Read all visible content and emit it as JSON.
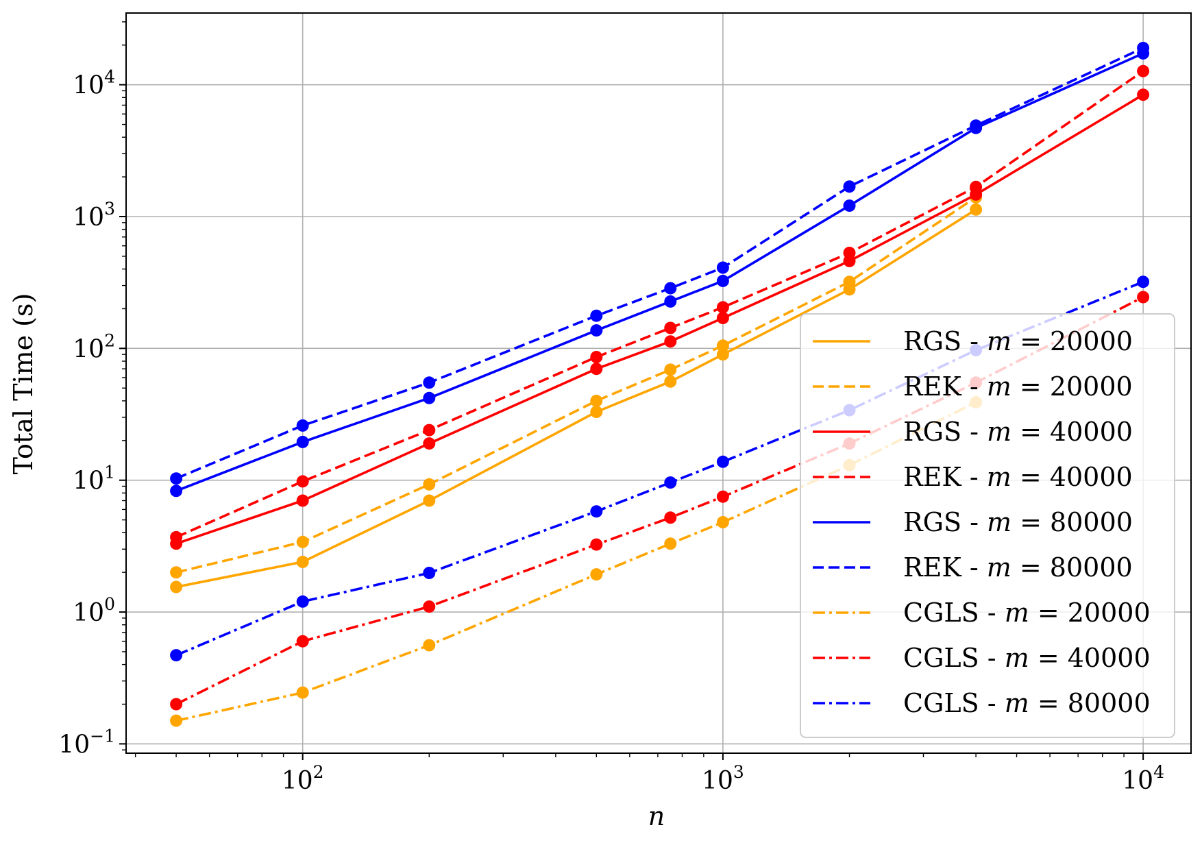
{
  "chart_data": {
    "type": "line",
    "xlabel": "n",
    "ylabel": "Total Time (s)",
    "xscale": "log",
    "yscale": "log",
    "xlim": [
      38,
      13000
    ],
    "ylim": [
      0.085,
      35000
    ],
    "grid": true,
    "legend_position": "lower-right",
    "x_major_ticks": [
      {
        "value": 100,
        "base": "10",
        "exp": "2"
      },
      {
        "value": 1000,
        "base": "10",
        "exp": "3"
      },
      {
        "value": 10000,
        "base": "10",
        "exp": "4"
      }
    ],
    "y_major_ticks": [
      {
        "value": 0.1,
        "base": "10",
        "exp": "−1"
      },
      {
        "value": 1,
        "base": "10",
        "exp": "0"
      },
      {
        "value": 10,
        "base": "10",
        "exp": "1"
      },
      {
        "value": 100,
        "base": "10",
        "exp": "2"
      },
      {
        "value": 1000,
        "base": "10",
        "exp": "3"
      },
      {
        "value": 10000,
        "base": "10",
        "exp": "4"
      }
    ],
    "series": [
      {
        "name": "RGS - m = 20000",
        "method": "RGS - ",
        "m": "20000",
        "color": "#ffa500",
        "dash": "solid",
        "x": [
          50,
          100,
          200,
          500,
          750,
          1000,
          2000,
          4000
        ],
        "y": [
          1.55,
          2.4,
          7.0,
          33,
          56,
          90,
          280,
          1130
        ]
      },
      {
        "name": "REK - m = 20000",
        "method": "REK - ",
        "m": "20000",
        "color": "#ffa500",
        "dash": "dashed",
        "x": [
          50,
          100,
          200,
          500,
          750,
          1000,
          2000,
          4000
        ],
        "y": [
          2.0,
          3.4,
          9.3,
          40,
          69,
          105,
          320,
          1400
        ]
      },
      {
        "name": "RGS - m = 40000",
        "method": "RGS - ",
        "m": "40000",
        "color": "#ff0000",
        "dash": "solid",
        "x": [
          50,
          100,
          200,
          500,
          750,
          1000,
          2000,
          4000,
          10000
        ],
        "y": [
          3.3,
          7.0,
          19,
          70,
          113,
          170,
          460,
          1470,
          8400
        ]
      },
      {
        "name": "REK - m = 40000",
        "method": "REK - ",
        "m": "40000",
        "color": "#ff0000",
        "dash": "dashed",
        "x": [
          50,
          100,
          200,
          500,
          750,
          1000,
          2000,
          4000,
          10000
        ],
        "y": [
          3.7,
          9.8,
          24,
          86,
          143,
          205,
          530,
          1680,
          12700
        ]
      },
      {
        "name": "RGS - m = 80000",
        "method": "RGS - ",
        "m": "80000",
        "color": "#0000ff",
        "dash": "solid",
        "x": [
          50,
          100,
          200,
          500,
          750,
          1000,
          2000,
          4000,
          10000
        ],
        "y": [
          8.3,
          19.5,
          42,
          137,
          227,
          325,
          1210,
          4700,
          17300
        ]
      },
      {
        "name": "REK - m = 80000",
        "method": "REK - ",
        "m": "80000",
        "color": "#0000ff",
        "dash": "dashed",
        "x": [
          50,
          100,
          200,
          500,
          750,
          1000,
          2000,
          4000,
          10000
        ],
        "y": [
          10.3,
          26,
          55,
          177,
          286,
          410,
          1690,
          4900,
          19000
        ]
      },
      {
        "name": "CGLS - m = 20000",
        "method": "CGLS - ",
        "m": "20000",
        "color": "#ffa500",
        "dash": "dashdot",
        "x": [
          50,
          100,
          200,
          500,
          750,
          1000,
          2000,
          4000
        ],
        "y": [
          0.15,
          0.245,
          0.56,
          1.93,
          3.3,
          4.8,
          13,
          39
        ]
      },
      {
        "name": "CGLS - m = 40000",
        "method": "CGLS - ",
        "m": "40000",
        "color": "#ff0000",
        "dash": "dashdot",
        "x": [
          50,
          100,
          200,
          500,
          750,
          1000,
          2000,
          4000,
          10000
        ],
        "y": [
          0.2,
          0.6,
          1.1,
          3.25,
          5.2,
          7.5,
          19,
          55,
          245
        ]
      },
      {
        "name": "CGLS - m = 80000",
        "method": "CGLS - ",
        "m": "80000",
        "color": "#0000ff",
        "dash": "dashdot",
        "x": [
          50,
          100,
          200,
          500,
          750,
          1000,
          2000,
          4000,
          10000
        ],
        "y": [
          0.47,
          1.2,
          1.98,
          5.8,
          9.6,
          13.8,
          34,
          97,
          320
        ]
      }
    ]
  }
}
